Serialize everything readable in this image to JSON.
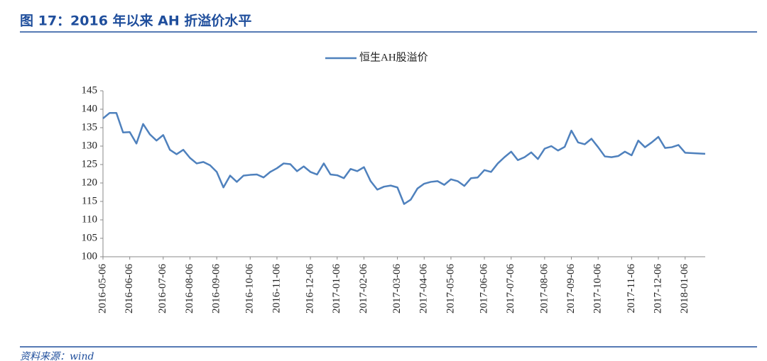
{
  "chart_data": {
    "type": "line",
    "title": "图 17：2016 年以来 AH 折溢价水平",
    "source": "资料来源：wind",
    "categories": [
      "2016-05-06",
      null,
      null,
      null,
      "2016-06-06",
      null,
      null,
      null,
      null,
      "2016-07-06",
      null,
      null,
      null,
      "2016-08-06",
      null,
      null,
      null,
      "2016-09-06",
      null,
      null,
      null,
      null,
      "2016-10-06",
      null,
      null,
      null,
      "2016-11-06",
      null,
      null,
      null,
      null,
      "2016-12-06",
      null,
      null,
      null,
      "2017-01-06",
      null,
      null,
      null,
      "2017-02-06",
      null,
      null,
      null,
      null,
      "2017-03-06",
      null,
      null,
      null,
      "2017-04-06",
      null,
      null,
      null,
      "2017-05-06",
      null,
      null,
      null,
      null,
      "2017-06-06",
      null,
      null,
      null,
      "2017-07-06",
      null,
      null,
      null,
      null,
      "2017-08-06",
      null,
      null,
      null,
      "2017-09-06",
      null,
      null,
      null,
      "2017-10-06",
      null,
      null,
      null,
      null,
      "2017-11-06",
      null,
      null,
      null,
      "2017-12-06",
      null,
      null,
      null,
      "2018-01-06",
      null,
      null,
      null
    ],
    "series": [
      {
        "name": "恒生AH股溢价",
        "color": "#4f81bd",
        "values": [
          137.5,
          139,
          139,
          133.7,
          133.8,
          130.7,
          136,
          133.2,
          131.5,
          133,
          129,
          127.8,
          129,
          126.8,
          125.3,
          125.7,
          124.8,
          123,
          118.8,
          122,
          120.3,
          122,
          122.2,
          122.3,
          121.5,
          123,
          124,
          125.3,
          125.1,
          123.2,
          124.5,
          123,
          122.3,
          125.3,
          122.3,
          122.1,
          121.3,
          123.8,
          123.2,
          124.3,
          120.5,
          118.2,
          119,
          119.3,
          118.8,
          114.3,
          115.5,
          118.5,
          119.8,
          120.3,
          120.5,
          119.5,
          121,
          120.5,
          119.2,
          121.3,
          121.5,
          123.5,
          123,
          125.3,
          127,
          128.5,
          126.2,
          127,
          128.3,
          126.5,
          129.3,
          130,
          128.8,
          129.8,
          134.2,
          131,
          130.5,
          132,
          129.7,
          127.2,
          127,
          127.3,
          128.5,
          127.5,
          131.5,
          129.7,
          131,
          132.5,
          129.5,
          129.7,
          130.3,
          128.2,
          128.1,
          128,
          127.9
        ]
      }
    ],
    "ylim": [
      100,
      145
    ],
    "yticks": [
      100,
      105,
      110,
      115,
      120,
      125,
      130,
      135,
      140,
      145
    ],
    "grid": false
  }
}
